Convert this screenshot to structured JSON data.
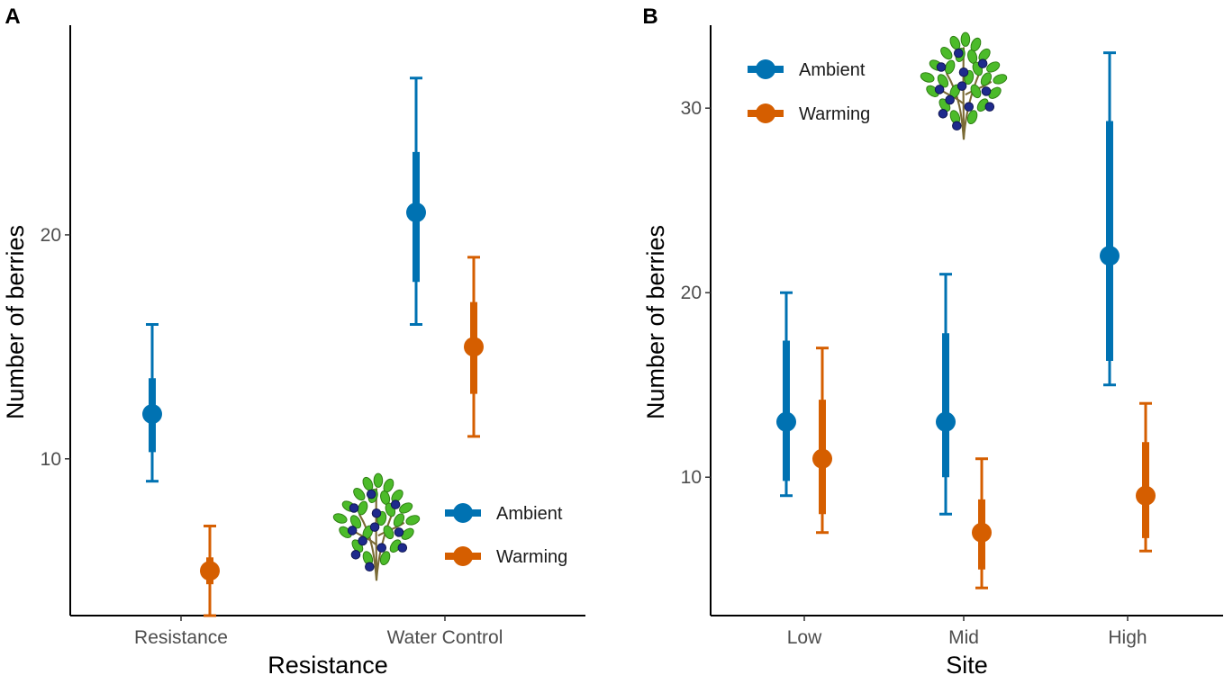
{
  "colors": {
    "Ambient": "#0072B2",
    "Warming": "#D55E00"
  },
  "icon": "blueberry-bush-icon",
  "chart_data": [
    {
      "panel_label": "A",
      "type": "scatter",
      "title": "",
      "xlabel": "Resistance",
      "ylabel": "Number of berries",
      "categories": [
        "Resistance",
        "Water Control"
      ],
      "ylim": [
        3,
        29.2
      ],
      "yticks": [
        10,
        20
      ],
      "legend": {
        "position": "bottom-right",
        "entries": [
          "Ambient",
          "Warming"
        ]
      },
      "series": [
        {
          "name": "Ambient",
          "mean": [
            12,
            21
          ],
          "inner": [
            [
              10.3,
              13.6
            ],
            [
              17.9,
              23.7
            ]
          ],
          "outer": [
            [
              9,
              16
            ],
            [
              16,
              27
            ]
          ]
        },
        {
          "name": "Warming",
          "mean": [
            5,
            15
          ],
          "inner": [
            [
              4.4,
              5.6
            ],
            [
              12.9,
              17
            ]
          ],
          "outer": [
            [
              3,
              7
            ],
            [
              11,
              19
            ]
          ]
        }
      ]
    },
    {
      "panel_label": "B",
      "type": "scatter",
      "title": "",
      "xlabel": "Site",
      "ylabel": "Number of berries",
      "categories": [
        "Low",
        "Mid",
        "High"
      ],
      "ylim": [
        2.5,
        34.3
      ],
      "yticks": [
        10,
        20,
        30
      ],
      "legend": {
        "position": "top-left",
        "entries": [
          "Ambient",
          "Warming"
        ]
      },
      "series": [
        {
          "name": "Ambient",
          "mean": [
            13,
            13,
            22
          ],
          "inner": [
            [
              9.8,
              17.4
            ],
            [
              10,
              17.8
            ],
            [
              16.3,
              29.3
            ]
          ],
          "outer": [
            [
              9,
              20
            ],
            [
              8,
              21
            ],
            [
              15,
              33
            ]
          ]
        },
        {
          "name": "Warming",
          "mean": [
            11,
            7,
            9
          ],
          "inner": [
            [
              8,
              14.2
            ],
            [
              5,
              8.8
            ],
            [
              6.7,
              11.9
            ]
          ],
          "outer": [
            [
              7,
              17
            ],
            [
              4,
              11
            ],
            [
              6,
              14
            ]
          ]
        }
      ]
    }
  ]
}
